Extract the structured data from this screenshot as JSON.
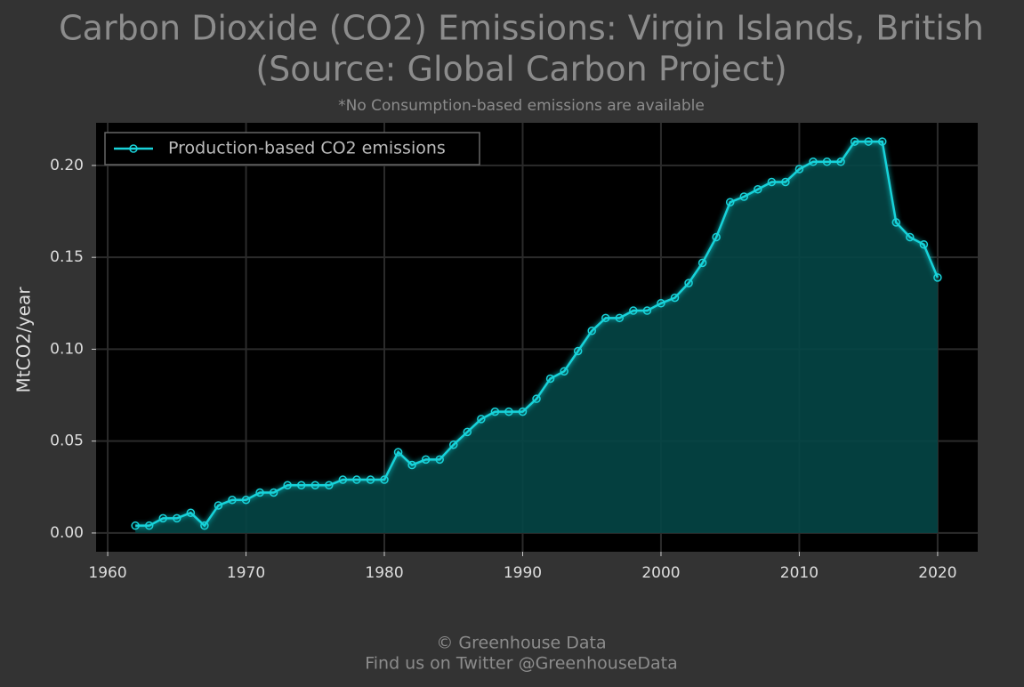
{
  "chart_data": {
    "type": "line",
    "title": [
      "Carbon Dioxide (CO2) Emissions: Virgin Islands, British",
      "(Source: Global Carbon Project)"
    ],
    "subtitle": "*No Consumption-based emissions are available",
    "ylabel": "MtCO2/year",
    "footer": [
      "© Greenhouse Data",
      "Find us on Twitter @GreenhouseData"
    ],
    "x": [
      1962,
      1963,
      1964,
      1965,
      1966,
      1967,
      1968,
      1969,
      1970,
      1971,
      1972,
      1973,
      1974,
      1975,
      1976,
      1977,
      1978,
      1979,
      1980,
      1981,
      1982,
      1983,
      1984,
      1985,
      1986,
      1987,
      1988,
      1989,
      1990,
      1991,
      1992,
      1993,
      1994,
      1995,
      1996,
      1997,
      1998,
      1999,
      2000,
      2001,
      2002,
      2003,
      2004,
      2005,
      2006,
      2007,
      2008,
      2009,
      2010,
      2011,
      2012,
      2013,
      2014,
      2015,
      2016,
      2017,
      2018,
      2019,
      2020
    ],
    "series": [
      {
        "name": "Production-based CO2 emissions",
        "color": "#19d3da",
        "fill": "#044646",
        "values": [
          0.004,
          0.004,
          0.008,
          0.008,
          0.011,
          0.004,
          0.015,
          0.018,
          0.018,
          0.022,
          0.022,
          0.026,
          0.026,
          0.026,
          0.026,
          0.029,
          0.029,
          0.029,
          0.029,
          0.044,
          0.037,
          0.04,
          0.04,
          0.048,
          0.055,
          0.062,
          0.066,
          0.066,
          0.066,
          0.073,
          0.084,
          0.088,
          0.099,
          0.11,
          0.117,
          0.117,
          0.121,
          0.121,
          0.125,
          0.128,
          0.136,
          0.147,
          0.161,
          0.18,
          0.183,
          0.187,
          0.191,
          0.191,
          0.198,
          0.202,
          0.202,
          0.202,
          0.213,
          0.213,
          0.213,
          0.169,
          0.161,
          0.157,
          0.139
        ]
      }
    ],
    "xlim": [
      1959.16,
      2022.9
    ],
    "ylim": [
      -0.0102,
      0.2232
    ],
    "xticks": [
      1960,
      1970,
      1980,
      1990,
      2000,
      2010,
      2020
    ],
    "yticks": [
      {
        "value": 0,
        "label": "0.00"
      },
      {
        "value": 0.05,
        "label": "0.05"
      },
      {
        "value": 0.1,
        "label": "0.10"
      },
      {
        "value": 0.15,
        "label": "0.15"
      },
      {
        "value": 0.2,
        "label": "0.20"
      }
    ],
    "grid": true,
    "legend": "upper-left"
  }
}
